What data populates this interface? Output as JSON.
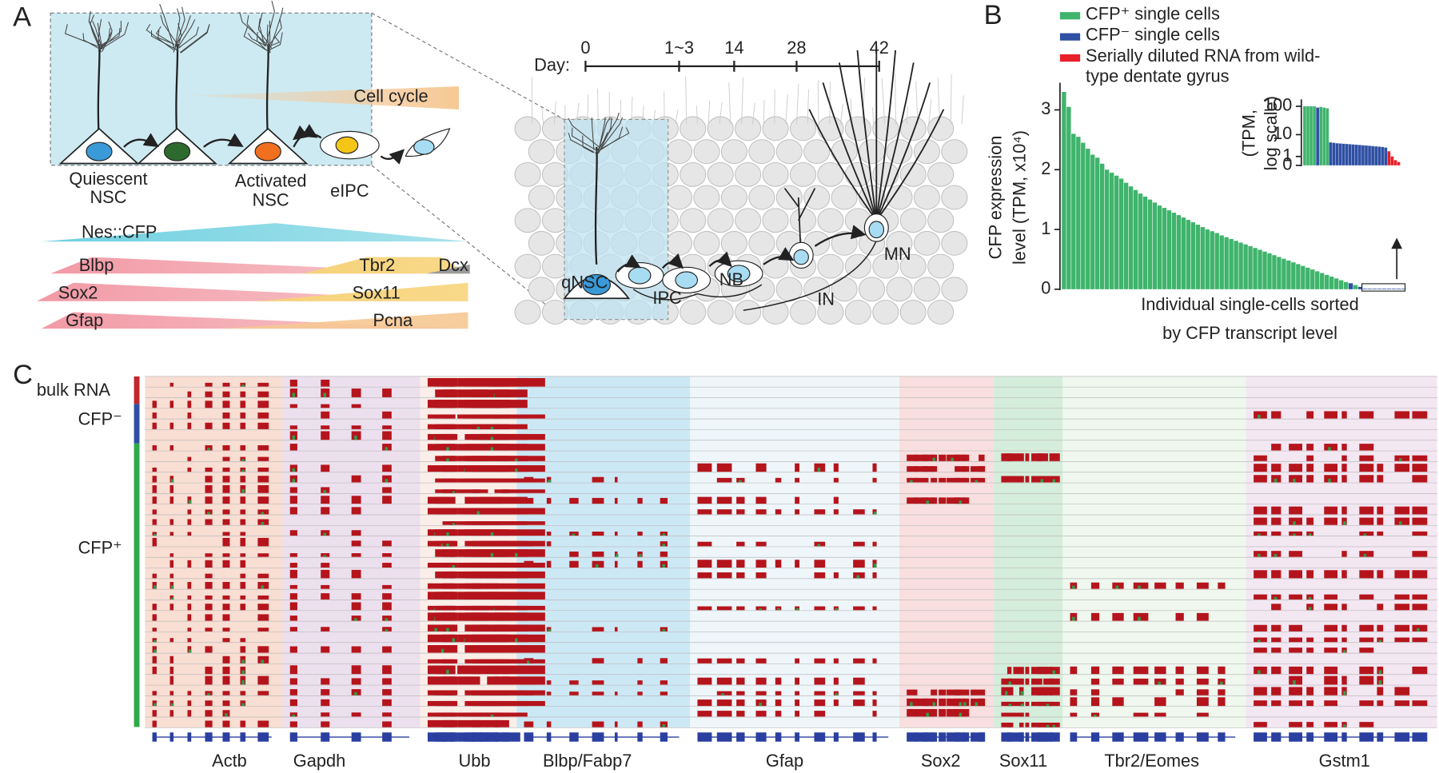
{
  "panel_labels": [
    "A",
    "B",
    "C"
  ],
  "panel_a": {
    "schematic": {
      "cell_cycle": "Cell cycle",
      "quiescent": [
        "Quiescent",
        "NSC"
      ],
      "activated": [
        "Activated",
        "NSC"
      ],
      "eipc": "eIPC"
    },
    "markers": {
      "nes": "Nes::CFP",
      "blbp": "Blbp",
      "tbr2": "Tbr2",
      "dcx": "Dcx",
      "sox2": "Sox2",
      "sox11": "Sox11",
      "gfap": "Gfap",
      "pcna": "Pcna"
    },
    "timeline": {
      "label": "Day:",
      "ticks": [
        "0",
        "1~3",
        "14",
        "28",
        "42"
      ],
      "stages": [
        "qNSC",
        "IPC",
        "NB",
        "IN",
        "MN"
      ]
    }
  },
  "panel_b": {
    "chart_data": {
      "type": "bar",
      "y_label": [
        "CFP expression",
        "level (TPM, x10⁴)"
      ],
      "x_label": [
        "Individual single-cells sorted",
        "by CFP transcript level"
      ],
      "ylim": [
        0,
        3.3
      ],
      "yticks": [
        0,
        1,
        2,
        3
      ],
      "grid": false,
      "series": [
        {
          "color": "#3fb46c",
          "values": [
            3.3,
            3.05,
            2.6,
            2.55,
            2.45,
            2.35,
            2.25,
            2.2,
            2.1,
            2.0,
            1.95,
            1.9,
            1.85,
            1.78,
            1.72,
            1.66,
            1.6,
            1.55,
            1.5,
            1.45,
            1.4,
            1.36,
            1.32,
            1.28,
            1.24,
            1.2,
            1.16,
            1.12,
            1.08,
            1.04,
            1.0,
            0.97,
            0.94,
            0.9,
            0.87,
            0.84,
            0.81,
            0.78,
            0.75,
            0.72,
            0.69,
            0.66,
            0.63,
            0.6,
            0.57,
            0.54,
            0.51,
            0.48,
            0.45,
            0.42,
            0.39,
            0.36,
            0.33,
            0.3,
            0.27,
            0.24,
            0.21,
            0.18,
            0.15,
            0.12,
            null,
            0.07,
            null,
            null,
            null,
            null,
            null,
            null,
            null,
            null,
            null,
            null
          ]
        },
        {
          "color": "#2e4fa3",
          "values": [
            null,
            null,
            null,
            null,
            null,
            null,
            null,
            null,
            null,
            null,
            null,
            null,
            null,
            null,
            null,
            null,
            null,
            null,
            null,
            null,
            null,
            null,
            null,
            null,
            null,
            null,
            null,
            null,
            null,
            null,
            null,
            null,
            null,
            null,
            null,
            null,
            null,
            null,
            null,
            null,
            null,
            null,
            null,
            null,
            null,
            null,
            null,
            null,
            null,
            null,
            null,
            null,
            null,
            null,
            null,
            null,
            null,
            null,
            null,
            null,
            0.1,
            null,
            0.04,
            0.01,
            0.01,
            0.01,
            0.01,
            0.01,
            0.01,
            0.01,
            0.01,
            0.01
          ]
        }
      ],
      "inset": {
        "type": "bar",
        "yscale": "log1p",
        "y_label": [
          "(TPM,",
          "log scale)"
        ],
        "ylim": [
          0,
          150
        ],
        "yticks": [
          0,
          1,
          10,
          100
        ],
        "series": [
          {
            "name": "CFP⁺ single cells",
            "color": "#3fb46c",
            "values": [
              100,
              100,
              100,
              100,
              null,
              95,
              90,
              85,
              null,
              null,
              null,
              null,
              null,
              null,
              null,
              null,
              null,
              null,
              null,
              null,
              null,
              null,
              null,
              null,
              null,
              null,
              null,
              null,
              null,
              null
            ]
          },
          {
            "name": "CFP⁻ single cells",
            "color": "#2e4fa3",
            "values": [
              null,
              null,
              null,
              null,
              90,
              null,
              null,
              null,
              5,
              4.8,
              4.6,
              4.5,
              4.4,
              4.3,
              4.2,
              4.1,
              4,
              3.9,
              3.8,
              3.7,
              3.6,
              3.5,
              3.4,
              3.3,
              3.2,
              3.0,
              null,
              null,
              null,
              null
            ]
          },
          {
            "name": "Serially diluted RNA from wild-type dentate gyrus",
            "color": "#e8202a",
            "values": [
              null,
              null,
              null,
              null,
              null,
              null,
              null,
              null,
              null,
              null,
              null,
              null,
              null,
              null,
              null,
              null,
              null,
              null,
              null,
              null,
              null,
              null,
              null,
              null,
              null,
              null,
              2,
              1,
              0.5,
              0.3
            ]
          }
        ]
      }
    }
  },
  "panel_c": {
    "groups": [
      "bulk RNA",
      "CFP⁻",
      "CFP⁺"
    ],
    "genes": [
      "Actb",
      "Gapdh",
      "Ubb",
      "Blbp/Fabp7",
      "Gfap",
      "Sox2",
      "Sox11",
      "Tbr2/Eomes",
      "Gstm1"
    ]
  }
}
